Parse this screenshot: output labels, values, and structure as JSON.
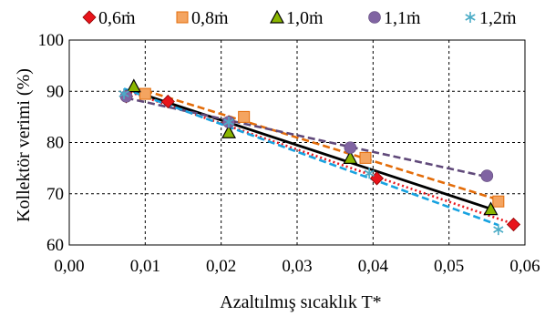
{
  "chart_data": {
    "type": "scatter",
    "title": "",
    "xlabel": "Azaltılmış sıcaklık T*",
    "ylabel": "Kollektör verimi (%)",
    "xlim": [
      0.0,
      0.06
    ],
    "ylim": [
      60,
      100
    ],
    "x_ticks": [
      0.0,
      0.01,
      0.02,
      0.03,
      0.04,
      0.05,
      0.06
    ],
    "x_tick_labels": [
      "0,00",
      "0,01",
      "0,02",
      "0,03",
      "0,04",
      "0,05",
      "0,06"
    ],
    "y_ticks": [
      60,
      70,
      80,
      90,
      100
    ],
    "y_tick_labels": [
      "60",
      "70",
      "80",
      "90",
      "100"
    ],
    "grid": "dashed",
    "legend_position": "top",
    "series": [
      {
        "name": "0,6ṁ",
        "marker": "diamond",
        "color": "#e8141b",
        "trendline": "dotted",
        "trend_color": "#e8141b",
        "points": [
          [
            0.0075,
            89.0
          ],
          [
            0.013,
            88.0
          ],
          [
            0.021,
            84.0
          ],
          [
            0.0405,
            73.0
          ],
          [
            0.0585,
            64.0
          ]
        ]
      },
      {
        "name": "0,8ṁ",
        "marker": "square",
        "color": "#f4a460",
        "trendline": "dashed",
        "trend_color": "#e36c09",
        "points": [
          [
            0.01,
            89.5
          ],
          [
            0.023,
            85.0
          ],
          [
            0.039,
            77.0
          ],
          [
            0.0565,
            68.5
          ]
        ]
      },
      {
        "name": "1,0ṁ",
        "marker": "triangle",
        "color": "#8ab600",
        "trendline": "solid",
        "trend_color": "#000000",
        "points": [
          [
            0.0085,
            91.0
          ],
          [
            0.021,
            82.0
          ],
          [
            0.037,
            77.0
          ],
          [
            0.0555,
            67.0
          ]
        ]
      },
      {
        "name": "1,1ṁ",
        "marker": "circle",
        "color": "#8064a2",
        "trendline": "dashed",
        "trend_color": "#60497a",
        "points": [
          [
            0.0075,
            89.0
          ],
          [
            0.021,
            84.0
          ],
          [
            0.037,
            79.0
          ],
          [
            0.055,
            73.5
          ]
        ]
      },
      {
        "name": "1,2ṁ",
        "marker": "star",
        "color": "#4bacc6",
        "trendline": "dashed",
        "trend_color": "#17a2e0",
        "points": [
          [
            0.0072,
            89.5
          ],
          [
            0.021,
            84.0
          ],
          [
            0.0395,
            74.0
          ],
          [
            0.0565,
            63.0
          ]
        ]
      }
    ]
  }
}
